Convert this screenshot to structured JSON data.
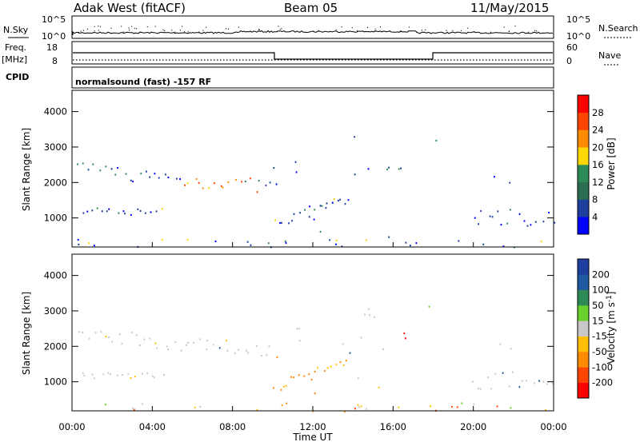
{
  "header": {
    "station": "Adak West (fitACF)",
    "beam": "Beam 05",
    "date": "11/May/2015"
  },
  "strips": {
    "nsky_label": "N.Sky",
    "nsky_top": "10^5",
    "nsky_bottom": "10^0",
    "nsearch_label": "N.Search",
    "nsearch_top": "10^5",
    "nsearch_bottom": "10^0",
    "freq_label": "Freq.",
    "freq_unit": "[MHz]",
    "freq_top": "18",
    "freq_bottom": "8",
    "nave_label": "Nave",
    "nave_top": "60",
    "nave_bottom": "0",
    "cpid_label": "CPID",
    "cpid_value": "normalsound (fast) -157 RF"
  },
  "colors": {
    "power": [
      "#0000ff",
      "#1f3f9f",
      "#2c6e54",
      "#2e8b57",
      "#ffd700",
      "#ff8c00",
      "#ff4500",
      "#ff0000"
    ],
    "velocity": [
      "#ff0000",
      "#ff4500",
      "#ff8c00",
      "#ffbf00",
      "#c8c8c8",
      "#6ad02d",
      "#2e8b57",
      "#1f5aa0",
      "#1f3fa0"
    ]
  },
  "chart_data": [
    {
      "type": "heatmap",
      "title": "",
      "xlabel": "Time UT",
      "ylabel": "Slant Range [km]",
      "xlim": [
        0,
        24
      ],
      "ylim": [
        180,
        4600
      ],
      "x_ticks": [
        "00:00",
        "04:00",
        "08:00",
        "12:00",
        "16:00",
        "20:00",
        "00:00"
      ],
      "y_ticks": [
        "1000",
        "2000",
        "3000",
        "4000"
      ],
      "colorbar": {
        "label": "Power [dB]",
        "ticks": [
          "4",
          "8",
          "12",
          "16",
          "20",
          "24",
          "28"
        ],
        "range": [
          0,
          32
        ]
      }
    },
    {
      "type": "heatmap",
      "title": "",
      "xlabel": "Time UT",
      "ylabel": "Slant Range [km]",
      "xlim": [
        0,
        24
      ],
      "ylim": [
        180,
        4600
      ],
      "x_ticks": [
        "00:00",
        "04:00",
        "08:00",
        "12:00",
        "16:00",
        "20:00",
        "00:00"
      ],
      "y_ticks": [
        "1000",
        "2000",
        "3000",
        "4000"
      ],
      "colorbar": {
        "label": "Velocity [m s^-1]",
        "ticks": [
          "-200",
          "-100",
          "-50",
          "-15",
          "15",
          "50",
          "100",
          "200"
        ]
      }
    }
  ]
}
